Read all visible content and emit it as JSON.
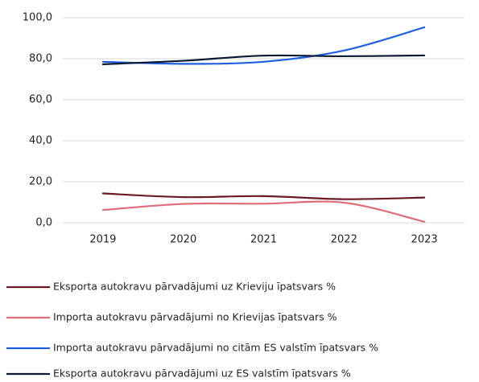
{
  "chart_data": {
    "type": "line",
    "categories": [
      "2019",
      "2020",
      "2021",
      "2022",
      "2023"
    ],
    "series": [
      {
        "name": "Eksporta autokravu pārvadājumi uz Krieviju īpatsvars %",
        "color": "#6b1a24",
        "values": [
          14.3,
          12.5,
          13.0,
          11.5,
          12.3
        ]
      },
      {
        "name": "Importa autokravu pārvadājumi no Krievijas īpatsvars %",
        "color": "#e06c7a",
        "values": [
          6.2,
          9.2,
          9.3,
          9.8,
          0.5
        ]
      },
      {
        "name": "Importa autokravu pārvadājumi no citām ES valstīm īpatsvars %",
        "color": "#1f5fe0",
        "values": [
          78.5,
          77.5,
          78.5,
          84.0,
          95.3
        ]
      },
      {
        "name": "Eksporta autokravu pārvadājumi uz ES valstīm īpatsvars %",
        "color": "#0a1a33",
        "values": [
          77.3,
          79.0,
          81.5,
          81.2,
          81.6
        ]
      }
    ],
    "ylim": [
      0,
      100
    ],
    "yticks": [
      {
        "value": 0,
        "label": "0,0"
      },
      {
        "value": 20,
        "label": "20,0"
      },
      {
        "value": 40,
        "label": "40,0"
      },
      {
        "value": 60,
        "label": "60,0"
      },
      {
        "value": 80,
        "label": "80,0"
      },
      {
        "value": 100,
        "label": "100,0"
      }
    ],
    "grid": true,
    "smooth": true
  }
}
